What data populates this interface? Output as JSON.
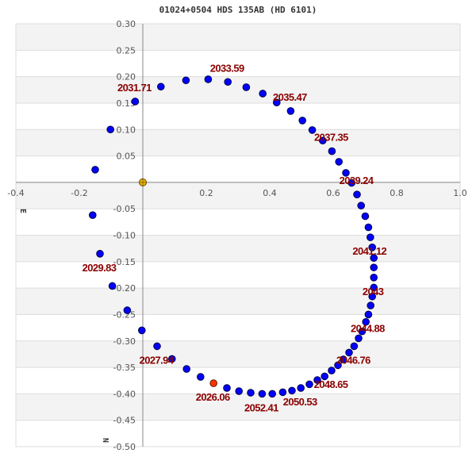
{
  "chart_data": {
    "type": "scatter",
    "title": "01024+0504 HDS 135AB (HD 6101)",
    "xlabel": "E",
    "ylabel": "N",
    "xlim": [
      -0.4,
      1.0
    ],
    "ylim": [
      -0.5,
      0.3
    ],
    "xticks": [
      "-0.4",
      "-0.2",
      "0.2",
      "0.4",
      "0.6",
      "0.8",
      "1.0"
    ],
    "xtick_values": [
      -0.4,
      -0.2,
      0.2,
      0.4,
      0.6,
      0.8,
      1.0
    ],
    "yticks": [
      "0.30",
      "0.25",
      "0.20",
      "0.15",
      "0.10",
      "0.05",
      "-0.05",
      "-0.10",
      "-0.15",
      "-0.20",
      "-0.25",
      "-0.30",
      "-0.35",
      "-0.40",
      "-0.45",
      "-0.50"
    ],
    "ytick_values": [
      0.3,
      0.25,
      0.2,
      0.15,
      0.1,
      0.05,
      -0.05,
      -0.1,
      -0.15,
      -0.2,
      -0.25,
      -0.3,
      -0.35,
      -0.4,
      -0.45,
      -0.5
    ],
    "grid": true,
    "colors": {
      "points": "#0000ff",
      "current": "#ff3300",
      "primary": "#f5b800",
      "label": "#8b0000",
      "band": "#f3f3f3"
    },
    "primary": {
      "x": 0,
      "y": 0
    },
    "points": [
      [
        0.223,
        -0.38
      ],
      [
        0.182,
        -0.368
      ],
      [
        0.138,
        -0.353
      ],
      [
        0.092,
        -0.334
      ],
      [
        0.045,
        -0.31
      ],
      [
        -0.003,
        -0.28
      ],
      [
        -0.049,
        -0.242
      ],
      [
        -0.096,
        -0.196
      ],
      [
        -0.135,
        -0.135
      ],
      [
        -0.158,
        -0.062
      ],
      [
        -0.15,
        0.024
      ],
      [
        -0.102,
        0.1
      ],
      [
        -0.024,
        0.153
      ],
      [
        0.057,
        0.181
      ],
      [
        0.136,
        0.193
      ],
      [
        0.206,
        0.195
      ],
      [
        0.268,
        0.19
      ],
      [
        0.326,
        0.18
      ],
      [
        0.378,
        0.168
      ],
      [
        0.422,
        0.151
      ],
      [
        0.466,
        0.135
      ],
      [
        0.503,
        0.117
      ],
      [
        0.534,
        0.099
      ],
      [
        0.567,
        0.079
      ],
      [
        0.596,
        0.059
      ],
      [
        0.618,
        0.039
      ],
      [
        0.64,
        0.018
      ],
      [
        0.658,
        -0.001
      ],
      [
        0.675,
        -0.023
      ],
      [
        0.688,
        -0.044
      ],
      [
        0.701,
        -0.064
      ],
      [
        0.711,
        -0.085
      ],
      [
        0.717,
        -0.104
      ],
      [
        0.723,
        -0.123
      ],
      [
        0.728,
        -0.143
      ],
      [
        0.728,
        -0.161
      ],
      [
        0.728,
        -0.18
      ],
      [
        0.728,
        -0.199
      ],
      [
        0.723,
        -0.216
      ],
      [
        0.718,
        -0.233
      ],
      [
        0.711,
        -0.25
      ],
      [
        0.703,
        -0.264
      ],
      [
        0.691,
        -0.282
      ],
      [
        0.68,
        -0.295
      ],
      [
        0.666,
        -0.31
      ],
      [
        0.65,
        -0.322
      ],
      [
        0.632,
        -0.335
      ],
      [
        0.615,
        -0.346
      ],
      [
        0.595,
        -0.356
      ],
      [
        0.573,
        -0.367
      ],
      [
        0.55,
        -0.374
      ],
      [
        0.525,
        -0.382
      ],
      [
        0.498,
        -0.389
      ],
      [
        0.47,
        -0.394
      ],
      [
        0.441,
        -0.397
      ],
      [
        0.408,
        -0.4
      ],
      [
        0.376,
        -0.4
      ],
      [
        0.34,
        -0.398
      ],
      [
        0.303,
        -0.395
      ],
      [
        0.265,
        -0.389
      ]
    ],
    "current_index": 0,
    "epoch_labels": [
      {
        "index": 0,
        "text": "2026.06",
        "side": "below"
      },
      {
        "index": 4,
        "text": "2027.94",
        "side": "below"
      },
      {
        "index": 8,
        "text": "2029.83",
        "side": "below"
      },
      {
        "index": 12,
        "text": "2031.71",
        "side": "above"
      },
      {
        "index": 16,
        "text": "2033.59",
        "side": "above"
      },
      {
        "index": 20,
        "text": "2035.47",
        "side": "above"
      },
      {
        "index": 24,
        "text": "2037.35",
        "side": "above"
      },
      {
        "index": 28,
        "text": "2039.24",
        "side": "above"
      },
      {
        "index": 32,
        "text": "2041.12",
        "side": "below"
      },
      {
        "index": 36,
        "text": "2043",
        "side": "below"
      },
      {
        "index": 40,
        "text": "2044.88",
        "side": "below"
      },
      {
        "index": 44,
        "text": "2046.76",
        "side": "below"
      },
      {
        "index": 48,
        "text": "2048.65",
        "side": "below"
      },
      {
        "index": 52,
        "text": "2050.53",
        "side": "below"
      },
      {
        "index": 56,
        "text": "2052.41",
        "side": "below"
      }
    ]
  }
}
